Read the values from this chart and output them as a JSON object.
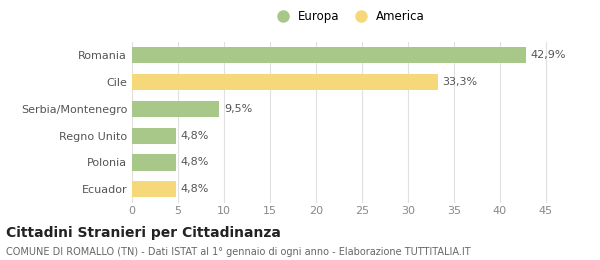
{
  "categories": [
    "Romania",
    "Cile",
    "Serbia/Montenegro",
    "Regno Unito",
    "Polonia",
    "Ecuador"
  ],
  "values": [
    42.9,
    33.3,
    9.5,
    4.8,
    4.8,
    4.8
  ],
  "labels": [
    "42,9%",
    "33,3%",
    "9,5%",
    "4,8%",
    "4,8%",
    "4,8%"
  ],
  "colors": [
    "#a8c88a",
    "#f5d87a",
    "#a8c88a",
    "#a8c88a",
    "#a8c88a",
    "#f5d87a"
  ],
  "legend_items": [
    {
      "label": "Europa",
      "color": "#a8c88a"
    },
    {
      "label": "America",
      "color": "#f5d87a"
    }
  ],
  "xlim": [
    0,
    47
  ],
  "xticks": [
    0,
    5,
    10,
    15,
    20,
    25,
    30,
    35,
    40,
    45
  ],
  "title_main": "Cittadini Stranieri per Cittadinanza",
  "title_sub": "COMUNE DI ROMALLO (TN) - Dati ISTAT al 1° gennaio di ogni anno - Elaborazione TUTTITALIA.IT",
  "bar_height": 0.6,
  "background_color": "#ffffff",
  "grid_color": "#e0e0e0",
  "label_fontsize": 8,
  "tick_fontsize": 8,
  "ytick_fontsize": 8,
  "title_fontsize": 10,
  "subtitle_fontsize": 7,
  "legend_fontsize": 8.5
}
